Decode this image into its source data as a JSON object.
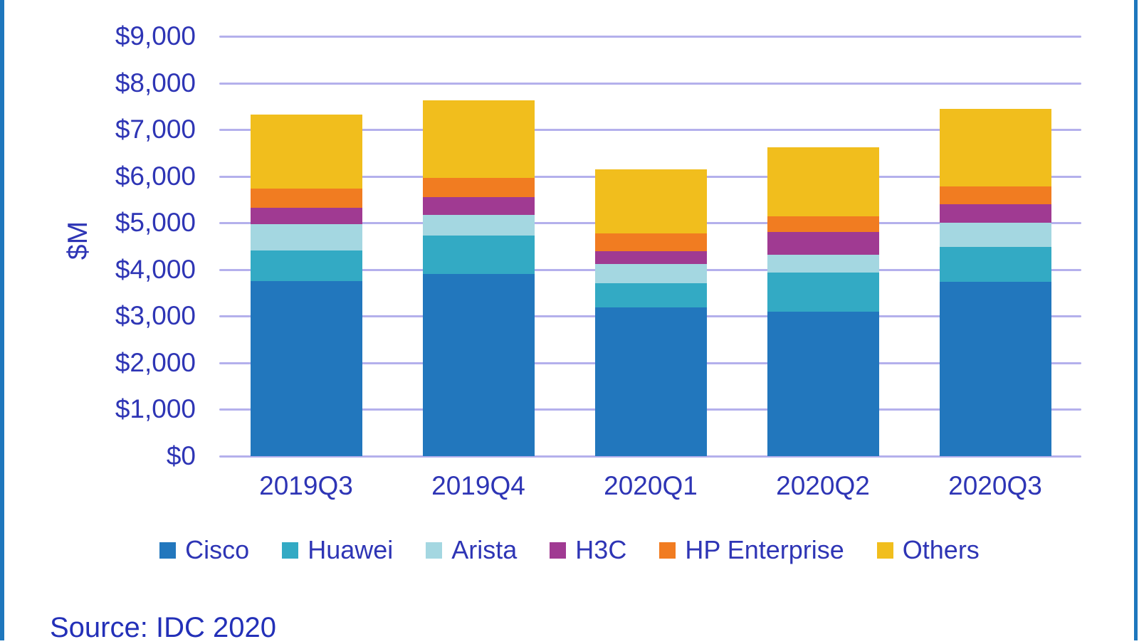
{
  "chart_data": {
    "type": "bar",
    "stacked": true,
    "title": "",
    "xlabel": "",
    "ylabel": "$M",
    "ylim": [
      0,
      9000
    ],
    "grid": true,
    "legend_position": "bottom",
    "y_ticks": [
      "$0",
      "$1,000",
      "$2,000",
      "$3,000",
      "$4,000",
      "$5,000",
      "$6,000",
      "$7,000",
      "$8,000",
      "$9,000"
    ],
    "categories": [
      "2019Q3",
      "2019Q4",
      "2020Q1",
      "2020Q2",
      "2020Q3"
    ],
    "series": [
      {
        "name": "Cisco",
        "color": "#2277BD",
        "values": [
          3750,
          3900,
          3190,
          3090,
          3730
        ]
      },
      {
        "name": "Huawei",
        "color": "#33AAC4",
        "values": [
          660,
          830,
          510,
          840,
          750
        ]
      },
      {
        "name": "Arista",
        "color": "#A4D7E1",
        "values": [
          560,
          440,
          420,
          380,
          520
        ]
      },
      {
        "name": "H3C",
        "color": "#A03A92",
        "values": [
          350,
          380,
          270,
          490,
          400
        ]
      },
      {
        "name": "HP Enterprise",
        "color": "#F17C21",
        "values": [
          410,
          410,
          380,
          340,
          380
        ]
      },
      {
        "name": "Others",
        "color": "#F1BE1D",
        "values": [
          1590,
          1660,
          1370,
          1480,
          1660
        ]
      }
    ],
    "totals": [
      7320,
      7620,
      6140,
      6620,
      7440
    ]
  },
  "source_note": "Source: IDC 2020",
  "colors": {
    "frame_border": "#1E77BD",
    "gridline": "#B4B0EC",
    "axis_text": "#2E35B5"
  }
}
